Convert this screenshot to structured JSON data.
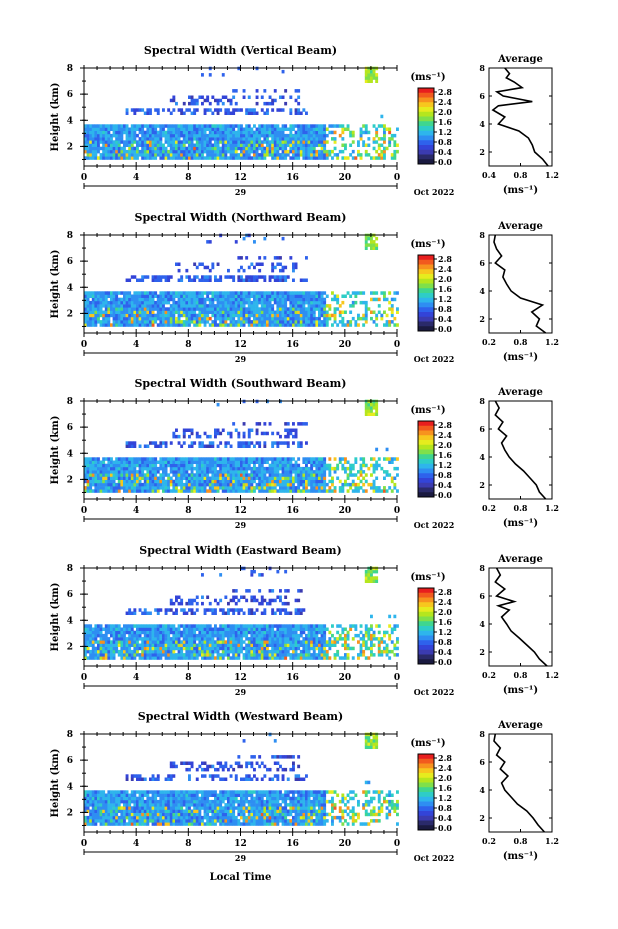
{
  "colorbar": {
    "unit_label": "(ms⁻¹)",
    "labels": [
      "2.8",
      "2.4",
      "2.0",
      "1.6",
      "1.2",
      "0.8",
      "0.4",
      "0.0"
    ],
    "colors": [
      "#e81e1e",
      "#f25a1e",
      "#f7921e",
      "#f7c71e",
      "#e6ec1e",
      "#b5e61e",
      "#7fe04a",
      "#3fd68f",
      "#2ecdc7",
      "#2eb5ec",
      "#2e8ef2",
      "#2e62ec",
      "#3344d8",
      "#3b3bb0",
      "#2a2a6a",
      "#ffffff"
    ],
    "low_colors": [
      "#1a1a40"
    ]
  },
  "x_ticks": [
    "0",
    "4",
    "8",
    "12",
    "16",
    "20",
    "0"
  ],
  "day_label": "29",
  "date_label": "Oct 2022",
  "y_ticks": [
    "2",
    "4",
    "6",
    "8"
  ],
  "y_axis_label": "Height (km)",
  "x_axis_label": "Local Time",
  "avg_title": "Average",
  "avg_x_unit": "(ms⁻¹)",
  "chart_data": [
    {
      "type": "heatmap",
      "title": "Spectral Width (Vertical Beam)",
      "xlabel": "",
      "ylabel": "Height (km)",
      "xlim": [
        0,
        24
      ],
      "ylim": [
        0.5,
        8
      ],
      "colorbar_range": [
        0.0,
        2.8
      ],
      "average_profile": {
        "title": "Average",
        "xlabel": "(ms⁻¹)",
        "xlim": [
          0.4,
          1.2
        ],
        "x_ticks": [
          "0.4",
          "0.8",
          "1.2"
        ],
        "ylim": [
          1,
          8
        ],
        "y_ticks": [
          "2",
          "4",
          "6",
          "8"
        ],
        "height_km": [
          1.0,
          1.5,
          2.0,
          2.5,
          3.0,
          3.5,
          4.0,
          4.5,
          5.0,
          5.3,
          5.6,
          6.0,
          6.3,
          6.6,
          7.0,
          7.3,
          7.6,
          8.0
        ],
        "width": [
          1.15,
          1.08,
          0.98,
          0.95,
          0.9,
          0.78,
          0.52,
          0.6,
          0.45,
          0.52,
          0.95,
          0.58,
          0.5,
          0.82,
          0.72,
          0.62,
          0.66,
          0.6
        ]
      }
    },
    {
      "type": "heatmap",
      "title": "Spectral Width (Northward Beam)",
      "xlabel": "",
      "ylabel": "Height (km)",
      "xlim": [
        0,
        24
      ],
      "ylim": [
        0.5,
        8
      ],
      "colorbar_range": [
        0.0,
        2.8
      ],
      "average_profile": {
        "title": "Average",
        "xlabel": "(ms⁻¹)",
        "xlim": [
          0.2,
          1.2
        ],
        "x_ticks": [
          "0.2",
          "0.8",
          "1.2"
        ],
        "ylim": [
          1,
          8
        ],
        "y_ticks": [
          "2",
          "4",
          "6",
          "8"
        ],
        "height_km": [
          1.0,
          1.5,
          2.0,
          2.5,
          3.0,
          3.5,
          4.0,
          4.5,
          5.0,
          5.5,
          6.0,
          6.5,
          7.0,
          7.5,
          8.0
        ],
        "width": [
          1.1,
          0.95,
          1.0,
          0.88,
          1.05,
          0.7,
          0.55,
          0.48,
          0.42,
          0.45,
          0.3,
          0.4,
          0.32,
          0.28,
          0.3
        ]
      }
    },
    {
      "type": "heatmap",
      "title": "Spectral Width (Southward Beam)",
      "xlabel": "",
      "ylabel": "Height (km)",
      "xlim": [
        0,
        24
      ],
      "ylim": [
        0.5,
        8
      ],
      "colorbar_range": [
        0.0,
        2.8
      ],
      "average_profile": {
        "title": "Average",
        "xlabel": "(ms⁻¹)",
        "xlim": [
          0.2,
          1.2
        ],
        "x_ticks": [
          "0.2",
          "0.8",
          "1.2"
        ],
        "ylim": [
          1,
          8
        ],
        "y_ticks": [
          "2",
          "4",
          "6",
          "8"
        ],
        "height_km": [
          1.0,
          1.5,
          2.0,
          2.5,
          3.0,
          3.5,
          4.0,
          4.5,
          5.0,
          5.5,
          6.0,
          6.5,
          7.0,
          7.5,
          8.0
        ],
        "width": [
          1.1,
          1.0,
          0.95,
          0.85,
          0.75,
          0.62,
          0.52,
          0.45,
          0.4,
          0.48,
          0.35,
          0.42,
          0.3,
          0.36,
          0.3
        ]
      }
    },
    {
      "type": "heatmap",
      "title": "Spectral Width (Eastward Beam)",
      "xlabel": "",
      "ylabel": "Height (km)",
      "xlim": [
        0,
        24
      ],
      "ylim": [
        0.5,
        8
      ],
      "colorbar_range": [
        0.0,
        2.8
      ],
      "average_profile": {
        "title": "Average",
        "xlabel": "(ms⁻¹)",
        "xlim": [
          0.2,
          1.2
        ],
        "x_ticks": [
          "0.2",
          "0.8",
          "1.2"
        ],
        "ylim": [
          1,
          8
        ],
        "y_ticks": [
          "2",
          "4",
          "6",
          "8"
        ],
        "height_km": [
          1.0,
          1.5,
          2.0,
          2.5,
          3.0,
          3.5,
          4.0,
          4.5,
          5.0,
          5.3,
          5.6,
          6.0,
          6.5,
          7.0,
          7.5,
          8.0
        ],
        "width": [
          1.12,
          1.0,
          0.92,
          0.8,
          0.68,
          0.55,
          0.48,
          0.4,
          0.52,
          0.35,
          0.6,
          0.32,
          0.45,
          0.3,
          0.38,
          0.32
        ]
      }
    },
    {
      "type": "heatmap",
      "title": "Spectral Width (Westward Beam)",
      "xlabel": "Local Time",
      "ylabel": "Height (km)",
      "xlim": [
        0,
        24
      ],
      "ylim": [
        0.5,
        8
      ],
      "colorbar_range": [
        0.0,
        2.8
      ],
      "average_profile": {
        "title": "Average",
        "xlabel": "(ms⁻¹)",
        "xlim": [
          0.2,
          1.2
        ],
        "x_ticks": [
          "0.2",
          "0.8",
          "1.2"
        ],
        "ylim": [
          1,
          8
        ],
        "y_ticks": [
          "2",
          "4",
          "6",
          "8"
        ],
        "height_km": [
          1.0,
          1.5,
          2.0,
          2.5,
          3.0,
          3.5,
          4.0,
          4.5,
          5.0,
          5.5,
          6.0,
          6.5,
          7.0,
          7.5,
          8.0
        ],
        "width": [
          1.08,
          0.98,
          0.9,
          0.8,
          0.65,
          0.55,
          0.45,
          0.4,
          0.5,
          0.38,
          0.45,
          0.32,
          0.38,
          0.28,
          0.3
        ]
      }
    }
  ]
}
